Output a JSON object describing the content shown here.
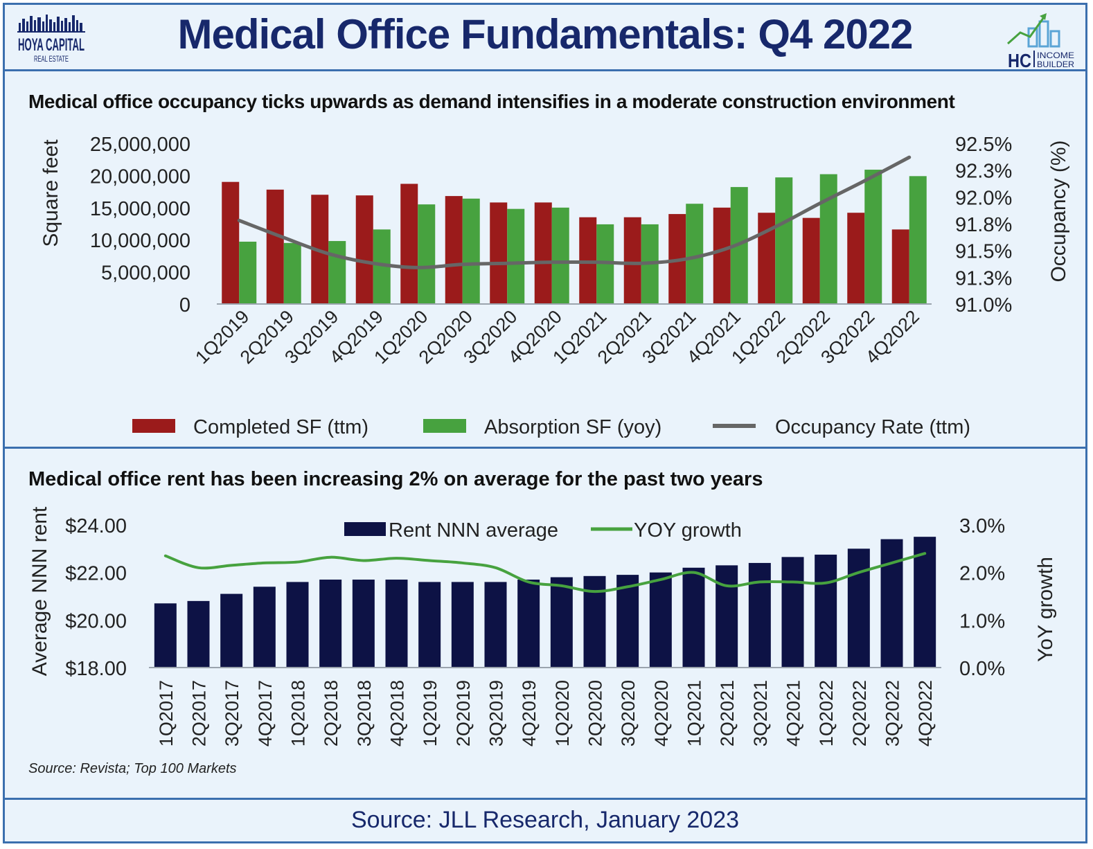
{
  "header": {
    "title": "Medical Office Fundamentals: Q4 2022",
    "logo_left": {
      "line1": "HOYA CAPITAL",
      "line2": "REAL ESTATE"
    },
    "logo_right": {
      "mark": "HC",
      "line1": "INCOME",
      "line2": "BUILDER"
    }
  },
  "footer": {
    "source": "Source: JLL Research, January 2023"
  },
  "colors": {
    "completed": "#9b1b1b",
    "absorption": "#47a23f",
    "occupancy": "#666666",
    "rent": "#0d1245",
    "yoy": "#47a23f",
    "brand": "#17286b",
    "border": "#3b6fae"
  },
  "chart_data": [
    {
      "type": "bar",
      "title": "Medical office occupancy ticks upwards as demand intensifies in a moderate construction environment",
      "ylabel": "Square feet",
      "y2label": "Occupancy (%)",
      "ylim": [
        0,
        25000000
      ],
      "y2lim": [
        91.0,
        92.5
      ],
      "yticks": [
        "25,000,000",
        "20,000,000",
        "15,000,000",
        "10,000,000",
        "5,000,000",
        "0"
      ],
      "y2ticks": [
        "92.5%",
        "92.3%",
        "92.0%",
        "91.8%",
        "91.5%",
        "91.3%",
        "91.0%"
      ],
      "categories": [
        "1Q2019",
        "2Q2019",
        "3Q2019",
        "4Q2019",
        "1Q2020",
        "2Q2020",
        "3Q2020",
        "4Q2020",
        "1Q2021",
        "2Q2021",
        "3Q2021",
        "4Q2021",
        "1Q2022",
        "2Q2022",
        "3Q2022",
        "4Q2022"
      ],
      "series": [
        {
          "name": "Completed SF (ttm)",
          "type": "bar",
          "values": [
            19000000,
            17800000,
            17000000,
            16900000,
            18700000,
            16800000,
            15800000,
            15800000,
            13500000,
            13500000,
            14000000,
            15000000,
            14200000,
            13400000,
            14200000,
            11600000
          ]
        },
        {
          "name": "Absorption SF (yoy)",
          "type": "bar",
          "values": [
            9700000,
            9500000,
            9800000,
            11600000,
            15500000,
            16400000,
            14800000,
            15000000,
            12400000,
            12400000,
            15600000,
            18200000,
            19700000,
            20200000,
            20900000,
            19900000
          ]
        },
        {
          "name": "Occupancy Rate (ttm)",
          "type": "line",
          "axis": "right",
          "values": [
            91.78,
            91.62,
            91.47,
            91.38,
            91.34,
            91.37,
            91.38,
            91.39,
            91.39,
            91.38,
            91.42,
            91.53,
            91.72,
            91.94,
            92.15,
            92.37
          ]
        }
      ],
      "legend": "bottom",
      "grid": false
    },
    {
      "type": "bar",
      "title": "Medical office rent has been increasing 2% on average for the past two years",
      "ylabel": "Average NNN rent",
      "y2label": "YoY growth",
      "ylim": [
        18,
        24
      ],
      "y2lim": [
        0,
        3
      ],
      "yticks": [
        "$24.00",
        "$22.00",
        "$20.00",
        "$18.00"
      ],
      "y2ticks": [
        "3.0%",
        "2.0%",
        "1.0%",
        "0.0%"
      ],
      "categories": [
        "1Q2017",
        "2Q2017",
        "3Q2017",
        "4Q2017",
        "1Q2018",
        "2Q2018",
        "3Q2018",
        "4Q2018",
        "1Q2019",
        "2Q2019",
        "3Q2019",
        "4Q2019",
        "1Q2020",
        "2Q2020",
        "3Q2020",
        "4Q2020",
        "1Q2021",
        "2Q2021",
        "3Q2021",
        "4Q2021",
        "1Q2022",
        "2Q2022",
        "3Q2022",
        "4Q2022"
      ],
      "series": [
        {
          "name": "Rent NNN average",
          "type": "bar",
          "values": [
            20.7,
            20.8,
            21.1,
            21.4,
            21.6,
            21.7,
            21.7,
            21.7,
            21.6,
            21.6,
            21.6,
            21.7,
            21.8,
            21.85,
            21.9,
            22.0,
            22.2,
            22.3,
            22.4,
            22.65,
            22.75,
            23.0,
            23.4,
            23.5
          ]
        },
        {
          "name": "YOY growth",
          "type": "line",
          "axis": "right",
          "values": [
            2.35,
            2.1,
            2.15,
            2.2,
            2.22,
            2.32,
            2.25,
            2.3,
            2.25,
            2.2,
            2.1,
            1.8,
            1.72,
            1.6,
            1.7,
            1.85,
            2.0,
            1.72,
            1.8,
            1.8,
            1.78,
            2.0,
            2.2,
            2.4
          ]
        }
      ],
      "legend": "top",
      "grid": false,
      "note": "Source: Revista; Top 100 Markets"
    }
  ]
}
